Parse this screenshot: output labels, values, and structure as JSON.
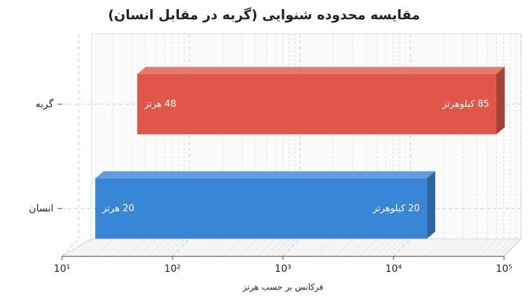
{
  "chart_data": {
    "type": "range_bar",
    "orientation": "horizontal",
    "title": "مقایسه محدوده شنوایی (گربه در مقابل انسان)",
    "x_label": "فرکانس بر حسب هرتز",
    "categories": [
      "گربه",
      "انسان"
    ],
    "low": [
      48,
      20
    ],
    "low_labels": [
      "48 هرتز",
      "20 هرتز"
    ],
    "high": [
      85000,
      20000
    ],
    "high_labels": [
      "85 کیلوهرتز",
      "20 کیلوهرتز"
    ],
    "colors": [
      "#e0574a",
      "#3a86d6"
    ],
    "xscale": "log",
    "xlim": [
      10,
      100000
    ],
    "xticks": [
      {
        "value": 10,
        "label": "10¹"
      },
      {
        "value": 100,
        "label": "10²"
      },
      {
        "value": 1000,
        "label": "10³"
      },
      {
        "value": 10000,
        "label": "10⁴"
      },
      {
        "value": 100000,
        "label": "10⁵"
      }
    ],
    "grid": true
  }
}
